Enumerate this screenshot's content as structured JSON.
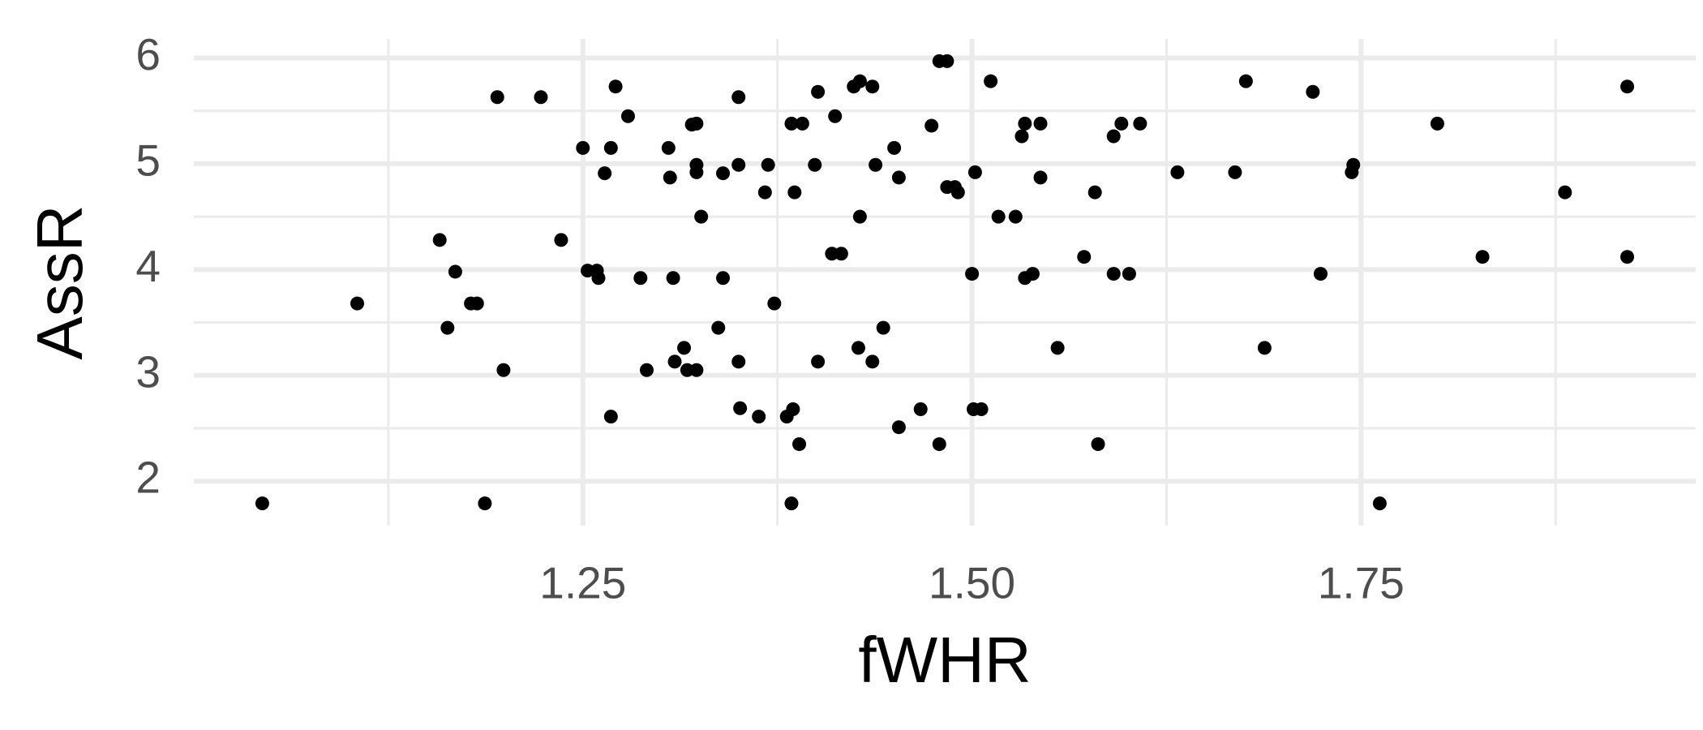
{
  "chart_data": {
    "type": "scatter",
    "x_label": "fWHR",
    "y_label": "AssR",
    "color": "#000000",
    "grid": true,
    "xlim": [
      1.0,
      1.965
    ],
    "ylim": [
      1.58,
      6.18
    ],
    "xticks": [
      1.25,
      {
        "value": 1.5,
        "label": "1.50"
      },
      1.75
    ],
    "yticks": [
      2,
      3,
      4,
      5,
      6
    ],
    "x_minor_ticks": [
      1.125,
      1.375,
      1.625,
      1.875
    ],
    "y_minor_ticks": [
      2.5,
      3.5,
      4.5,
      5.5
    ],
    "x": [
      1.044,
      1.105,
      1.158,
      1.168,
      1.163,
      1.178,
      1.182,
      1.187,
      1.195,
      1.199,
      1.223,
      1.236,
      1.25,
      1.253,
      1.259,
      1.26,
      1.264,
      1.268,
      1.268,
      1.271,
      1.279,
      1.287,
      1.291,
      1.305,
      1.306,
      1.308,
      1.309,
      1.315,
      1.317,
      1.32,
      1.323,
      1.323,
      1.323,
      1.323,
      1.326,
      1.337,
      1.34,
      1.34,
      1.35,
      1.35,
      1.35,
      1.351,
      1.363,
      1.367,
      1.369,
      1.373,
      1.381,
      1.384,
      1.384,
      1.385,
      1.386,
      1.389,
      1.391,
      1.399,
      1.401,
      1.401,
      1.41,
      1.412,
      1.416,
      1.424,
      1.428,
      1.427,
      1.428,
      1.436,
      1.436,
      1.438,
      1.443,
      1.45,
      1.453,
      1.453,
      1.467,
      1.474,
      1.479,
      1.479,
      1.484,
      1.484,
      1.489,
      1.491,
      1.5,
      1.501,
      1.502,
      1.506,
      1.512,
      1.517,
      1.528,
      1.532,
      1.534,
      1.534,
      1.539,
      1.544,
      1.544,
      1.555,
      1.572,
      1.579,
      1.581,
      1.591,
      1.591,
      1.596,
      1.601,
      1.608,
      1.632,
      1.669,
      1.676,
      1.688,
      1.719,
      1.724,
      1.744,
      1.745,
      1.762,
      1.799,
      1.828,
      1.881,
      1.921,
      1.921
    ],
    "values": [
      1.79,
      3.68,
      4.28,
      3.98,
      3.45,
      3.68,
      3.68,
      1.79,
      5.63,
      3.05,
      5.63,
      4.28,
      5.15,
      3.99,
      3.99,
      3.92,
      4.91,
      5.15,
      2.61,
      5.73,
      5.45,
      3.92,
      3.05,
      5.15,
      4.87,
      3.92,
      3.13,
      3.26,
      3.05,
      5.37,
      5.38,
      4.99,
      4.92,
      3.05,
      4.5,
      3.45,
      4.91,
      3.92,
      4.99,
      5.63,
      3.13,
      2.69,
      2.61,
      4.73,
      4.99,
      3.68,
      2.61,
      5.38,
      1.79,
      2.68,
      4.73,
      2.35,
      5.38,
      4.99,
      5.68,
      3.13,
      4.15,
      5.45,
      4.15,
      5.73,
      5.78,
      3.26,
      4.5,
      5.73,
      3.13,
      4.99,
      3.45,
      5.15,
      2.51,
      4.87,
      2.68,
      5.36,
      2.35,
      5.97,
      5.97,
      4.78,
      4.78,
      4.73,
      3.96,
      2.68,
      4.92,
      2.68,
      5.78,
      4.5,
      4.5,
      5.26,
      3.92,
      5.38,
      3.96,
      5.38,
      4.87,
      3.26,
      4.12,
      4.73,
      2.35,
      5.26,
      3.96,
      5.38,
      3.96,
      5.38,
      4.92,
      4.92,
      5.78,
      3.26,
      5.68,
      3.96,
      4.92,
      4.99,
      1.79,
      5.38,
      4.12,
      4.73,
      4.12,
      5.73
    ]
  }
}
